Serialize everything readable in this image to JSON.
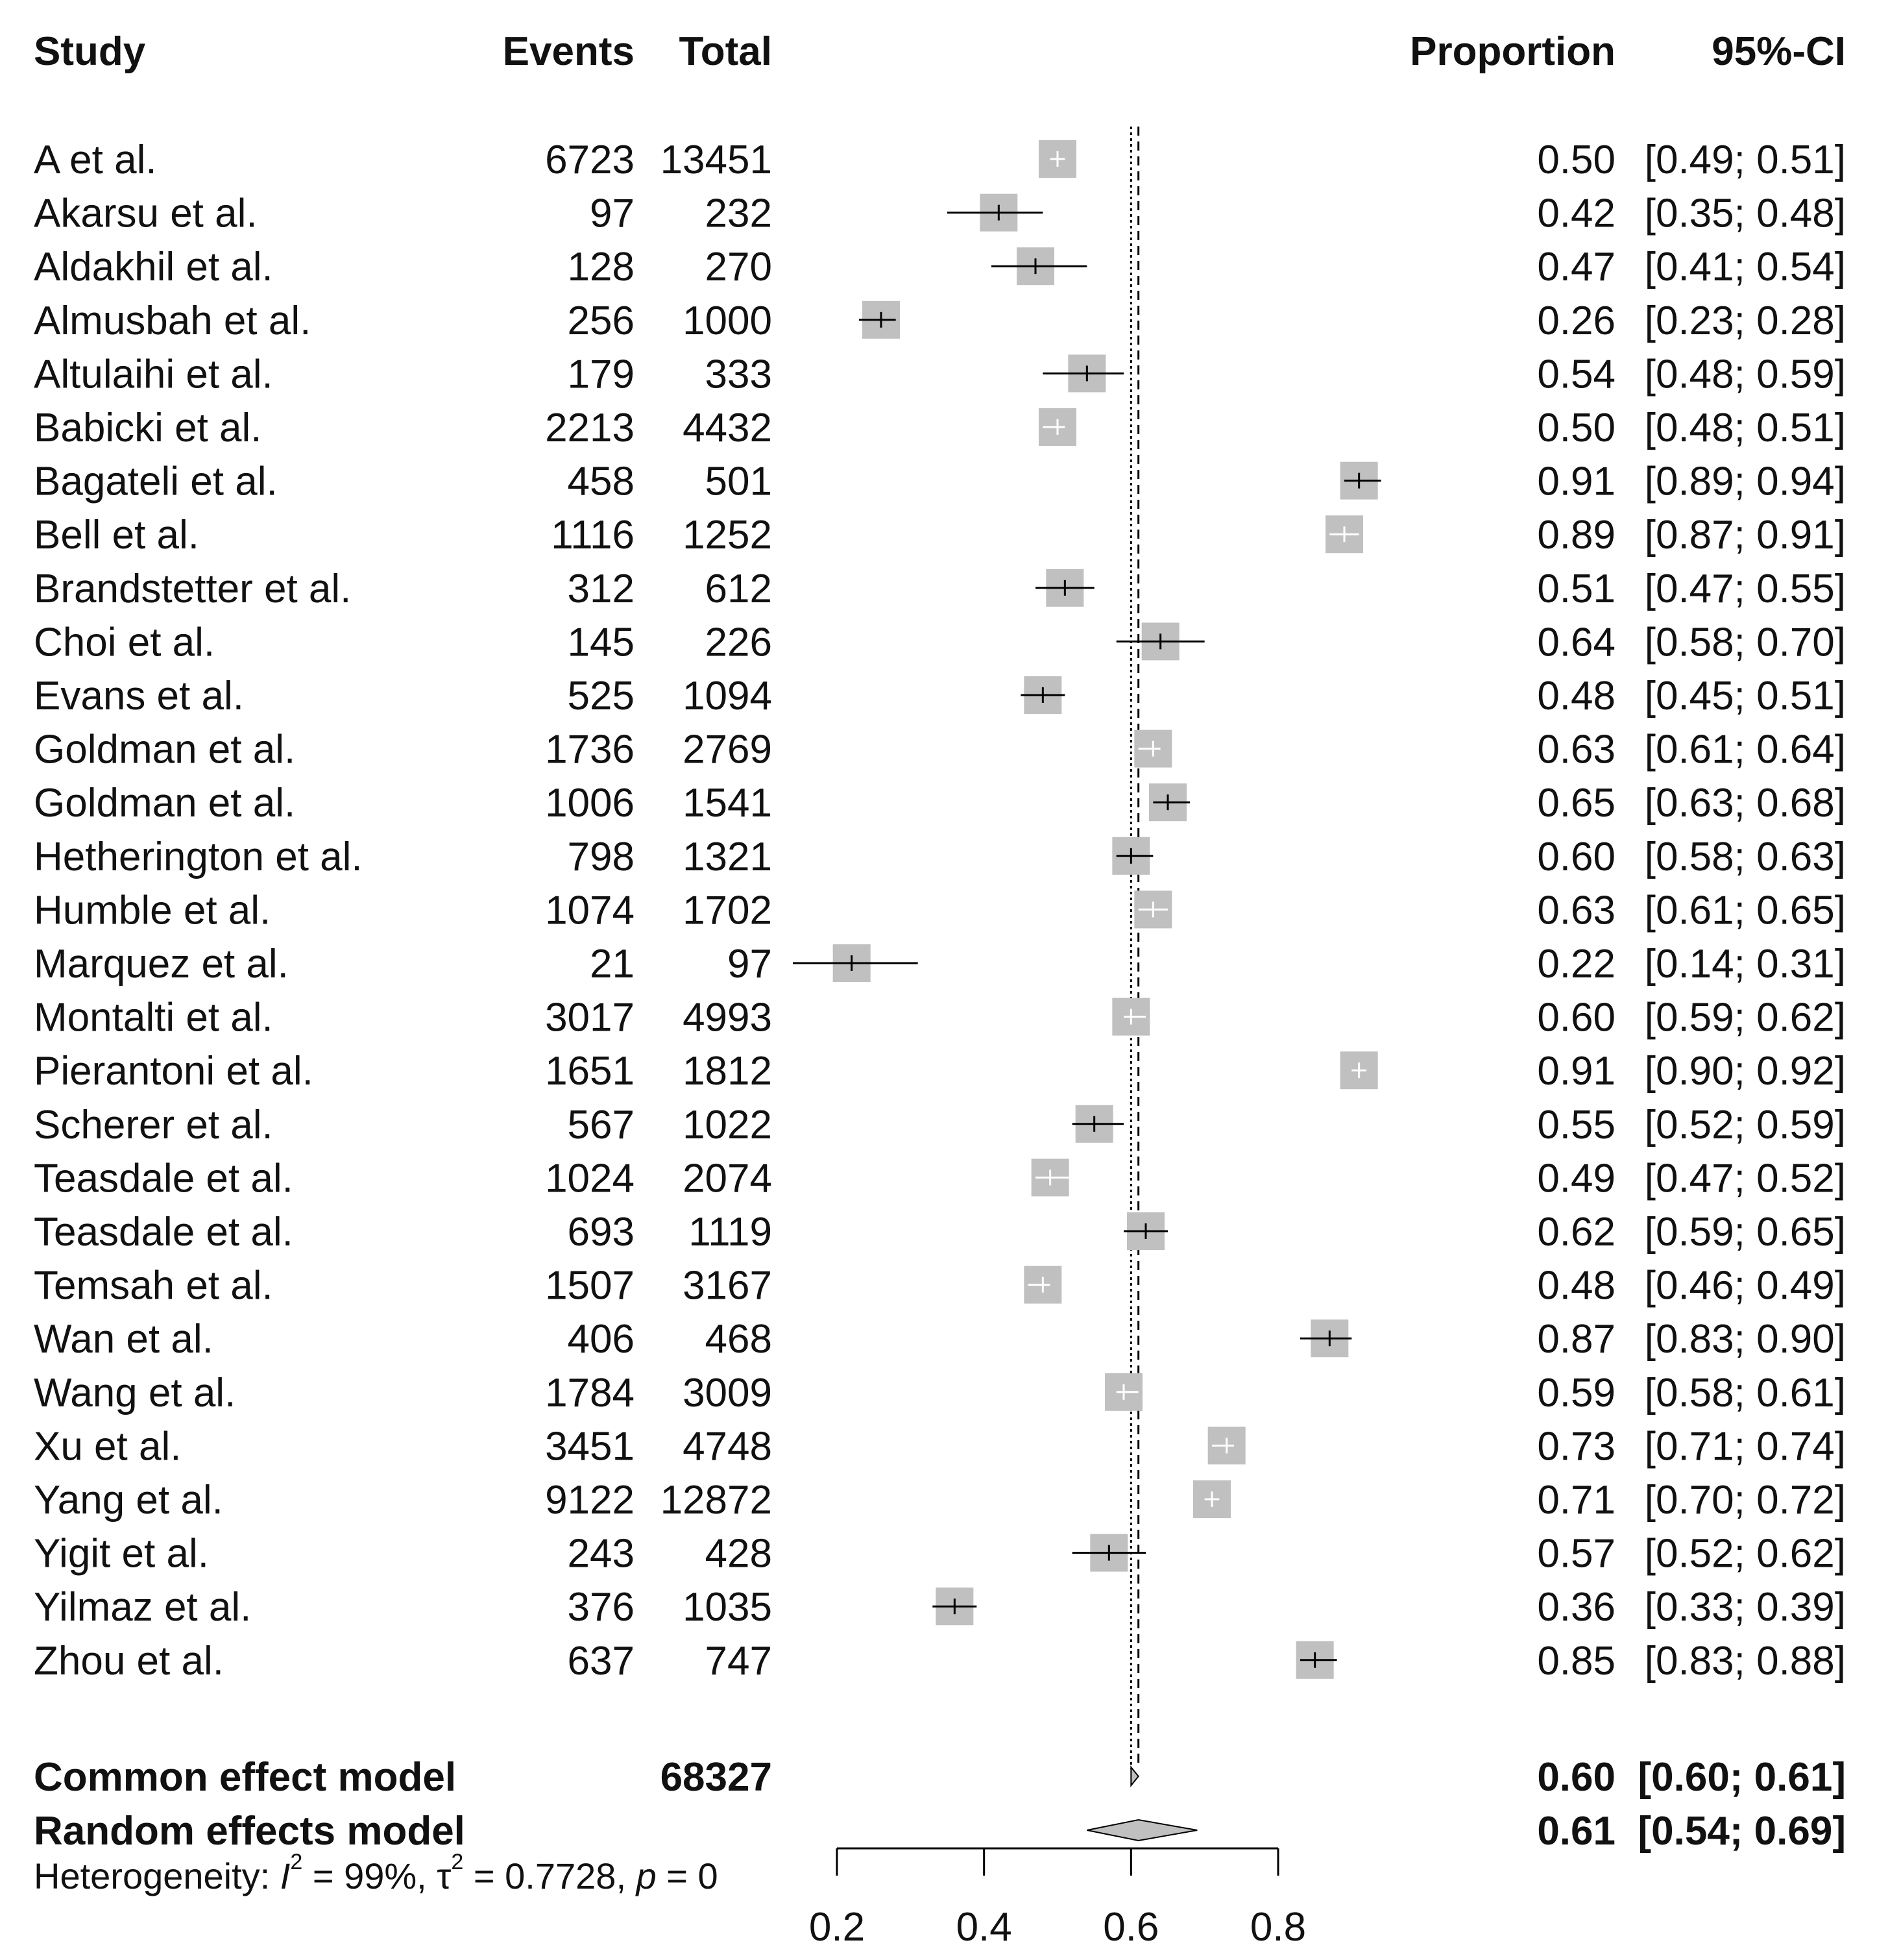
{
  "chart_data": {
    "type": "forest",
    "headers": {
      "study": "Study",
      "events": "Events",
      "total": "Total",
      "proportion": "Proportion",
      "ci": "95%-CI"
    },
    "studies": [
      {
        "name": "A et al.",
        "events": "6723",
        "total": "13451",
        "prop": 0.5,
        "lo": 0.49,
        "hi": 0.51,
        "prop_text": "0.50",
        "ci_text": "[0.49; 0.51]",
        "weight": "high"
      },
      {
        "name": "Akarsu et al.",
        "events": "97",
        "total": "232",
        "prop": 0.42,
        "lo": 0.35,
        "hi": 0.48,
        "prop_text": "0.42",
        "ci_text": "[0.35; 0.48]",
        "weight": "low"
      },
      {
        "name": "Aldakhil et al.",
        "events": "128",
        "total": "270",
        "prop": 0.47,
        "lo": 0.41,
        "hi": 0.54,
        "prop_text": "0.47",
        "ci_text": "[0.41; 0.54]",
        "weight": "low"
      },
      {
        "name": "Almusbah et al.",
        "events": "256",
        "total": "1000",
        "prop": 0.26,
        "lo": 0.23,
        "hi": 0.28,
        "prop_text": "0.26",
        "ci_text": "[0.23; 0.28]",
        "weight": "low"
      },
      {
        "name": "Altulaihi et al.",
        "events": "179",
        "total": "333",
        "prop": 0.54,
        "lo": 0.48,
        "hi": 0.59,
        "prop_text": "0.54",
        "ci_text": "[0.48; 0.59]",
        "weight": "low"
      },
      {
        "name": "Babicki et al.",
        "events": "2213",
        "total": "4432",
        "prop": 0.5,
        "lo": 0.48,
        "hi": 0.51,
        "prop_text": "0.50",
        "ci_text": "[0.48; 0.51]",
        "weight": "high"
      },
      {
        "name": "Bagateli et al.",
        "events": "458",
        "total": "501",
        "prop": 0.91,
        "lo": 0.89,
        "hi": 0.94,
        "prop_text": "0.91",
        "ci_text": "[0.89; 0.94]",
        "weight": "low"
      },
      {
        "name": "Bell et al.",
        "events": "1116",
        "total": "1252",
        "prop": 0.89,
        "lo": 0.87,
        "hi": 0.91,
        "prop_text": "0.89",
        "ci_text": "[0.87; 0.91]",
        "weight": "high"
      },
      {
        "name": "Brandstetter et al.",
        "events": "312",
        "total": "612",
        "prop": 0.51,
        "lo": 0.47,
        "hi": 0.55,
        "prop_text": "0.51",
        "ci_text": "[0.47; 0.55]",
        "weight": "low"
      },
      {
        "name": "Choi et al.",
        "events": "145",
        "total": "226",
        "prop": 0.64,
        "lo": 0.58,
        "hi": 0.7,
        "prop_text": "0.64",
        "ci_text": "[0.58; 0.70]",
        "weight": "low"
      },
      {
        "name": "Evans et al.",
        "events": "525",
        "total": "1094",
        "prop": 0.48,
        "lo": 0.45,
        "hi": 0.51,
        "prop_text": "0.48",
        "ci_text": "[0.45; 0.51]",
        "weight": "low"
      },
      {
        "name": "Goldman et al.",
        "events": "1736",
        "total": "2769",
        "prop": 0.63,
        "lo": 0.61,
        "hi": 0.64,
        "prop_text": "0.63",
        "ci_text": "[0.61; 0.64]",
        "weight": "high"
      },
      {
        "name": "Goldman et al.",
        "events": "1006",
        "total": "1541",
        "prop": 0.65,
        "lo": 0.63,
        "hi": 0.68,
        "prop_text": "0.65",
        "ci_text": "[0.63; 0.68]",
        "weight": "low"
      },
      {
        "name": "Hetherington et al.",
        "events": "798",
        "total": "1321",
        "prop": 0.6,
        "lo": 0.58,
        "hi": 0.63,
        "prop_text": "0.60",
        "ci_text": "[0.58; 0.63]",
        "weight": "low"
      },
      {
        "name": "Humble et al.",
        "events": "1074",
        "total": "1702",
        "prop": 0.63,
        "lo": 0.61,
        "hi": 0.65,
        "prop_text": "0.63",
        "ci_text": "[0.61; 0.65]",
        "weight": "high"
      },
      {
        "name": "Marquez et al.",
        "events": "21",
        "total": "97",
        "prop": 0.22,
        "lo": 0.14,
        "hi": 0.31,
        "prop_text": "0.22",
        "ci_text": "[0.14; 0.31]",
        "weight": "low"
      },
      {
        "name": "Montalti et al.",
        "events": "3017",
        "total": "4993",
        "prop": 0.6,
        "lo": 0.59,
        "hi": 0.62,
        "prop_text": "0.60",
        "ci_text": "[0.59; 0.62]",
        "weight": "high"
      },
      {
        "name": "Pierantoni et al.",
        "events": "1651",
        "total": "1812",
        "prop": 0.91,
        "lo": 0.9,
        "hi": 0.92,
        "prop_text": "0.91",
        "ci_text": "[0.90; 0.92]",
        "weight": "high"
      },
      {
        "name": "Scherer et al.",
        "events": "567",
        "total": "1022",
        "prop": 0.55,
        "lo": 0.52,
        "hi": 0.59,
        "prop_text": "0.55",
        "ci_text": "[0.52; 0.59]",
        "weight": "low"
      },
      {
        "name": "Teasdale et al.",
        "events": "1024",
        "total": "2074",
        "prop": 0.49,
        "lo": 0.47,
        "hi": 0.52,
        "prop_text": "0.49",
        "ci_text": "[0.47; 0.52]",
        "weight": "high"
      },
      {
        "name": "Teasdale et al.",
        "events": "693",
        "total": "1119",
        "prop": 0.62,
        "lo": 0.59,
        "hi": 0.65,
        "prop_text": "0.62",
        "ci_text": "[0.59; 0.65]",
        "weight": "low"
      },
      {
        "name": "Temsah et al.",
        "events": "1507",
        "total": "3167",
        "prop": 0.48,
        "lo": 0.46,
        "hi": 0.49,
        "prop_text": "0.48",
        "ci_text": "[0.46; 0.49]",
        "weight": "high"
      },
      {
        "name": "Wan et al.",
        "events": "406",
        "total": "468",
        "prop": 0.87,
        "lo": 0.83,
        "hi": 0.9,
        "prop_text": "0.87",
        "ci_text": "[0.83; 0.90]",
        "weight": "low"
      },
      {
        "name": "Wang et al.",
        "events": "1784",
        "total": "3009",
        "prop": 0.59,
        "lo": 0.58,
        "hi": 0.61,
        "prop_text": "0.59",
        "ci_text": "[0.58; 0.61]",
        "weight": "high"
      },
      {
        "name": "Xu et al.",
        "events": "3451",
        "total": "4748",
        "prop": 0.73,
        "lo": 0.71,
        "hi": 0.74,
        "prop_text": "0.73",
        "ci_text": "[0.71; 0.74]",
        "weight": "high"
      },
      {
        "name": "Yang et al.",
        "events": "9122",
        "total": "12872",
        "prop": 0.71,
        "lo": 0.7,
        "hi": 0.72,
        "prop_text": "0.71",
        "ci_text": "[0.70; 0.72]",
        "weight": "high"
      },
      {
        "name": "Yigit et al.",
        "events": "243",
        "total": "428",
        "prop": 0.57,
        "lo": 0.52,
        "hi": 0.62,
        "prop_text": "0.57",
        "ci_text": "[0.52; 0.62]",
        "weight": "low"
      },
      {
        "name": "Yilmaz et al.",
        "events": "376",
        "total": "1035",
        "prop": 0.36,
        "lo": 0.33,
        "hi": 0.39,
        "prop_text": "0.36",
        "ci_text": "[0.33; 0.39]",
        "weight": "low"
      },
      {
        "name": "Zhou et al.",
        "events": "637",
        "total": "747",
        "prop": 0.85,
        "lo": 0.83,
        "hi": 0.88,
        "prop_text": "0.85",
        "ci_text": "[0.83; 0.88]",
        "weight": "low"
      }
    ],
    "summary": [
      {
        "name": "Common effect model",
        "total": "68327",
        "prop": 0.6,
        "lo": 0.6,
        "hi": 0.61,
        "prop_text": "0.60",
        "ci_text": "[0.60; 0.61]"
      },
      {
        "name": "Random effects model",
        "total": "",
        "prop": 0.61,
        "lo": 0.54,
        "hi": 0.69,
        "prop_text": "0.61",
        "ci_text": "[0.54; 0.69]"
      }
    ],
    "heterogeneity": {
      "prefix": "Heterogeneity: ",
      "i_symbol": "I",
      "i_value": " = 99%, ",
      "tau_symbol": "τ",
      "tau_value": " = 0.7728, ",
      "p_symbol": "p",
      "p_value": " = 0",
      "superscript": "2"
    },
    "x_axis": {
      "ticks": [
        0.2,
        0.4,
        0.6,
        0.8
      ],
      "tick_labels": [
        "0.2",
        "0.4",
        "0.6",
        "0.8"
      ],
      "range": [
        0.2,
        0.8
      ]
    },
    "colors": {
      "square": "#c0c0c0",
      "line": "#000000",
      "text": "#111111"
    }
  }
}
